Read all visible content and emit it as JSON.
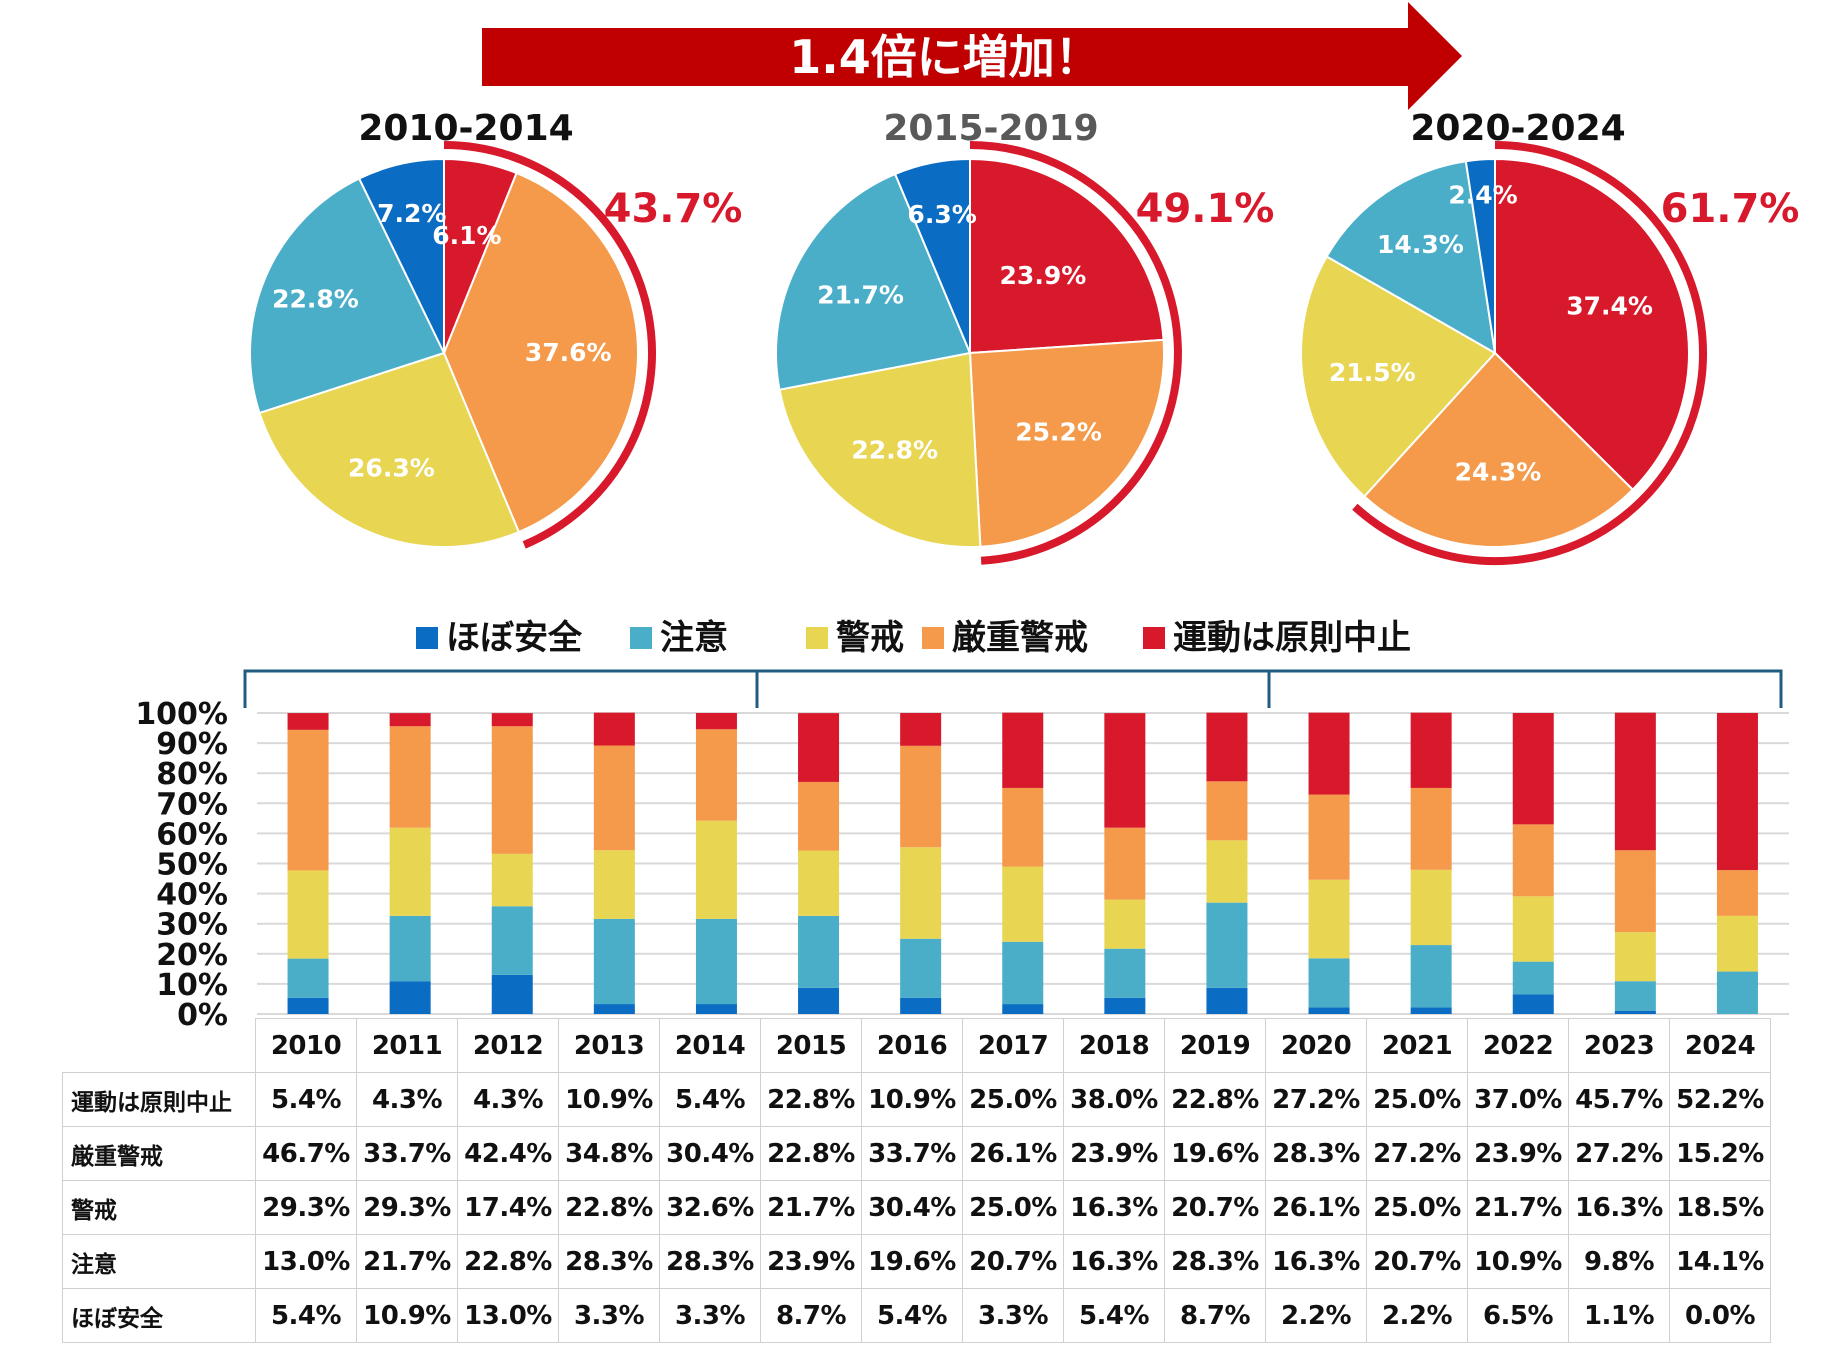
{
  "banner": "1.4倍に増加！",
  "colors": {
    "ほぼ安全": "#0a6cc2",
    "注意": "#4aaec8",
    "警戒": "#e8d552",
    "厳重警戒": "#f59a4a",
    "運動は原則中止": "#d7192b",
    "banner": "#c00000",
    "bracket": "#1f5c80"
  },
  "chart_data": [
    {
      "type": "pie",
      "title": "2010-2014",
      "labels": [
        "運動は原則中止",
        "厳重警戒",
        "警戒",
        "注意",
        "ほぼ安全"
      ],
      "values": [
        6.1,
        37.6,
        26.3,
        22.8,
        7.2
      ],
      "display": [
        "6.1%",
        "37.6%",
        "26.3%",
        "22.8%",
        "7.2%"
      ],
      "highlight_total": "43.7%"
    },
    {
      "type": "pie",
      "title": "2015-2019",
      "labels": [
        "運動は原則中止",
        "厳重警戒",
        "警戒",
        "注意",
        "ほぼ安全"
      ],
      "values": [
        23.9,
        25.2,
        22.8,
        21.7,
        6.3
      ],
      "display": [
        "23.9%",
        "25.2%",
        "22.8%",
        "21.7%",
        "6.3%"
      ],
      "highlight_total": "49.1%"
    },
    {
      "type": "pie",
      "title": "2020-2024",
      "labels": [
        "運動は原則中止",
        "厳重警戒",
        "警戒",
        "注意",
        "ほぼ安全"
      ],
      "values": [
        37.4,
        24.3,
        21.5,
        14.3,
        2.4
      ],
      "display": [
        "37.4%",
        "24.3%",
        "21.5%",
        "14.3%",
        "2.4%"
      ],
      "highlight_total": "61.7%"
    },
    {
      "type": "bar",
      "stacked": true,
      "normalized": true,
      "categories": [
        "2010",
        "2011",
        "2012",
        "2013",
        "2014",
        "2015",
        "2016",
        "2017",
        "2018",
        "2019",
        "2020",
        "2021",
        "2022",
        "2023",
        "2024"
      ],
      "series": [
        {
          "name": "ほぼ安全",
          "values": [
            5.4,
            10.9,
            13.0,
            3.3,
            3.3,
            8.7,
            5.4,
            3.3,
            5.4,
            8.7,
            2.2,
            2.2,
            6.5,
            1.1,
            0.0
          ],
          "display": [
            "5.4%",
            "10.9%",
            "13.0%",
            "3.3%",
            "3.3%",
            "8.7%",
            "5.4%",
            "3.3%",
            "5.4%",
            "8.7%",
            "2.2%",
            "2.2%",
            "6.5%",
            "1.1%",
            "0.0%"
          ]
        },
        {
          "name": "注意",
          "values": [
            13.0,
            21.7,
            22.8,
            28.3,
            28.3,
            23.9,
            19.6,
            20.7,
            16.3,
            28.3,
            16.3,
            20.7,
            10.9,
            9.8,
            14.1
          ],
          "display": [
            "13.0%",
            "21.7%",
            "22.8%",
            "28.3%",
            "28.3%",
            "23.9%",
            "19.6%",
            "20.7%",
            "16.3%",
            "28.3%",
            "16.3%",
            "20.7%",
            "10.9%",
            "9.8%",
            "14.1%"
          ]
        },
        {
          "name": "警戒",
          "values": [
            29.3,
            29.3,
            17.4,
            22.8,
            32.6,
            21.7,
            30.4,
            25.0,
            16.3,
            20.7,
            26.1,
            25.0,
            21.7,
            16.3,
            18.5
          ],
          "display": [
            "29.3%",
            "29.3%",
            "17.4%",
            "22.8%",
            "32.6%",
            "21.7%",
            "30.4%",
            "25.0%",
            "16.3%",
            "20.7%",
            "26.1%",
            "25.0%",
            "21.7%",
            "16.3%",
            "18.5%"
          ]
        },
        {
          "name": "厳重警戒",
          "values": [
            46.7,
            33.7,
            42.4,
            34.8,
            30.4,
            22.8,
            33.7,
            26.1,
            23.9,
            19.6,
            28.3,
            27.2,
            23.9,
            27.2,
            15.2
          ],
          "display": [
            "46.7%",
            "33.7%",
            "42.4%",
            "34.8%",
            "30.4%",
            "22.8%",
            "33.7%",
            "26.1%",
            "23.9%",
            "19.6%",
            "28.3%",
            "27.2%",
            "23.9%",
            "27.2%",
            "15.2%"
          ]
        },
        {
          "name": "運動は原則中止",
          "values": [
            5.4,
            4.3,
            4.3,
            10.9,
            5.4,
            22.8,
            10.9,
            25.0,
            38.0,
            22.8,
            27.2,
            25.0,
            37.0,
            45.7,
            52.2
          ],
          "display": [
            "5.4%",
            "4.3%",
            "4.3%",
            "10.9%",
            "5.4%",
            "22.8%",
            "10.9%",
            "25.0%",
            "38.0%",
            "22.8%",
            "27.2%",
            "25.0%",
            "37.0%",
            "45.7%",
            "52.2%"
          ]
        }
      ],
      "yticks": [
        "0%",
        "10%",
        "20%",
        "30%",
        "40%",
        "50%",
        "60%",
        "70%",
        "80%",
        "90%",
        "100%"
      ],
      "ylim": [
        0,
        100
      ],
      "legend": [
        "ほぼ安全",
        "注意",
        "警戒",
        "厳重警戒",
        "運動は原則中止"
      ],
      "table_row_order": [
        "運動は原則中止",
        "厳重警戒",
        "警戒",
        "注意",
        "ほぼ安全"
      ]
    }
  ]
}
